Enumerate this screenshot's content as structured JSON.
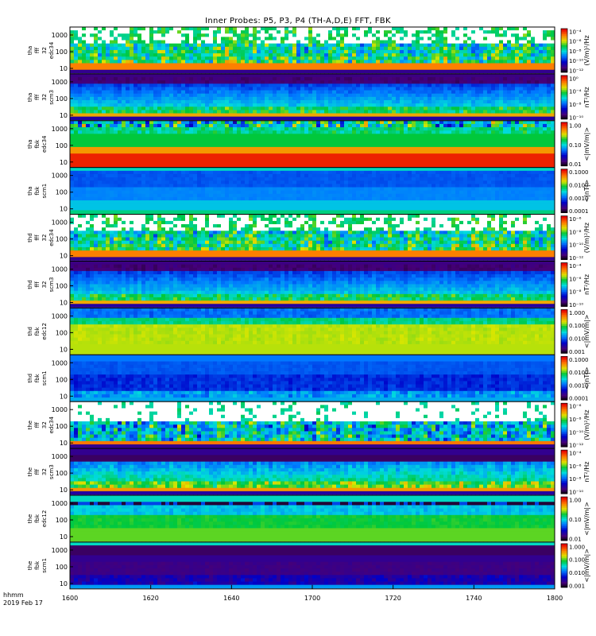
{
  "chart_data": {
    "type": "heatmap",
    "title": "Inner Probes: P5, P3, P4 (TH-A,D,E) FFT, FBK",
    "x_ticks": [
      "1600",
      "1620",
      "1640",
      "1700",
      "1720",
      "1740",
      "1800"
    ],
    "x_label_top": "hhmm",
    "x_label_bottom": "2019 Feb 17",
    "y_scale": "log",
    "panels": [
      {
        "l1": "tha",
        "l2": "fff",
        "l3": "32",
        "l4": "edc34",
        "style": "fff_edc",
        "y_ticks": [
          "1000",
          "100",
          "10"
        ],
        "cb_ticks": [
          "10⁻⁴",
          "10⁻⁶",
          "10⁻⁸",
          "10⁻¹⁰",
          "10⁻¹²"
        ],
        "cb_title": "(V/m)²/Hz"
      },
      {
        "l1": "tha",
        "l2": "fff",
        "l3": "32",
        "l4": "scm3",
        "style": "fff_scm",
        "y_ticks": [
          "1000",
          "100",
          "10"
        ],
        "cb_ticks": [
          "10⁰",
          "10⁻⁴",
          "10⁻⁸",
          "10⁻¹⁰"
        ],
        "cb_title": "nT²/Hz"
      },
      {
        "l1": "tha",
        "l2": "fbk",
        "l3": "",
        "l4": "edc34",
        "style": "fbk_edc_a",
        "y_ticks": [
          "1000",
          "100",
          "10"
        ],
        "cb_ticks": [
          "1.00",
          "0.10",
          "0.01"
        ],
        "cb_title": "<|mV/m|>"
      },
      {
        "l1": "tha",
        "l2": "fbk",
        "l3": "",
        "l4": "scm1",
        "style": "fbk_scm_a",
        "y_ticks": [
          "1000",
          "100",
          "10"
        ],
        "cb_ticks": [
          "0.1000",
          "0.0100",
          "0.0010",
          "0.0001"
        ],
        "cb_title": "<|nT|>"
      },
      {
        "l1": "thd",
        "l2": "fff",
        "l3": "32",
        "l4": "edc34",
        "style": "fff_edc",
        "y_ticks": [
          "1000",
          "100",
          "10"
        ],
        "cb_ticks": [
          "10⁻⁶",
          "10⁻⁸",
          "10⁻¹⁰",
          "10⁻¹²"
        ],
        "cb_title": "(V/m)²/Hz"
      },
      {
        "l1": "thd",
        "l2": "fff",
        "l3": "32",
        "l4": "scm3",
        "style": "fff_scm",
        "y_ticks": [
          "1000",
          "100",
          "10"
        ],
        "cb_ticks": [
          "10⁻⁴",
          "10⁻⁶",
          "10⁻⁸",
          "10⁻¹⁰"
        ],
        "cb_title": "nT²/Hz"
      },
      {
        "l1": "thd",
        "l2": "fbk",
        "l3": "",
        "l4": "edc12",
        "style": "fbk_edc_d",
        "y_ticks": [
          "1000",
          "100",
          "10"
        ],
        "cb_ticks": [
          "1.000",
          "0.100",
          "0.010",
          "0.001"
        ],
        "cb_title": "<|mV/m|>"
      },
      {
        "l1": "thd",
        "l2": "fbk",
        "l3": "",
        "l4": "scm1",
        "style": "fbk_scm_d",
        "y_ticks": [
          "1000",
          "100",
          "10"
        ],
        "cb_ticks": [
          "0.1000",
          "0.0100",
          "0.0010",
          "0.0001"
        ],
        "cb_title": "<|nT|>"
      },
      {
        "l1": "the",
        "l2": "fff",
        "l3": "32",
        "l4": "edc34",
        "style": "fff_edc_e",
        "y_ticks": [
          "1000",
          "100",
          "10"
        ],
        "cb_ticks": [
          "10⁻⁶",
          "10⁻⁸",
          "10⁻¹⁰",
          "10⁻¹²"
        ],
        "cb_title": "(V/m)²/Hz"
      },
      {
        "l1": "the",
        "l2": "fff",
        "l3": "32",
        "l4": "scm3",
        "style": "fff_scm_e",
        "y_ticks": [
          "1000",
          "100",
          "10"
        ],
        "cb_ticks": [
          "10⁻⁴",
          "10⁻⁶",
          "10⁻⁸",
          "10⁻¹⁰"
        ],
        "cb_title": "nT²/Hz"
      },
      {
        "l1": "the",
        "l2": "fbk",
        "l3": "",
        "l4": "edc12",
        "style": "fbk_edc_e",
        "y_ticks": [
          "1000",
          "100",
          "10"
        ],
        "cb_ticks": [
          "1.00",
          "0.10",
          "0.01"
        ],
        "cb_title": "<|mV/m|>"
      },
      {
        "l1": "the",
        "l2": "fbk",
        "l3": "",
        "l4": "scm1",
        "style": "fbk_scm_e",
        "y_ticks": [
          "1000",
          "100",
          "10"
        ],
        "cb_ticks": [
          "1.000",
          "0.100",
          "0.010",
          "0.001"
        ],
        "cb_title": "<|mV/m|>"
      }
    ]
  }
}
